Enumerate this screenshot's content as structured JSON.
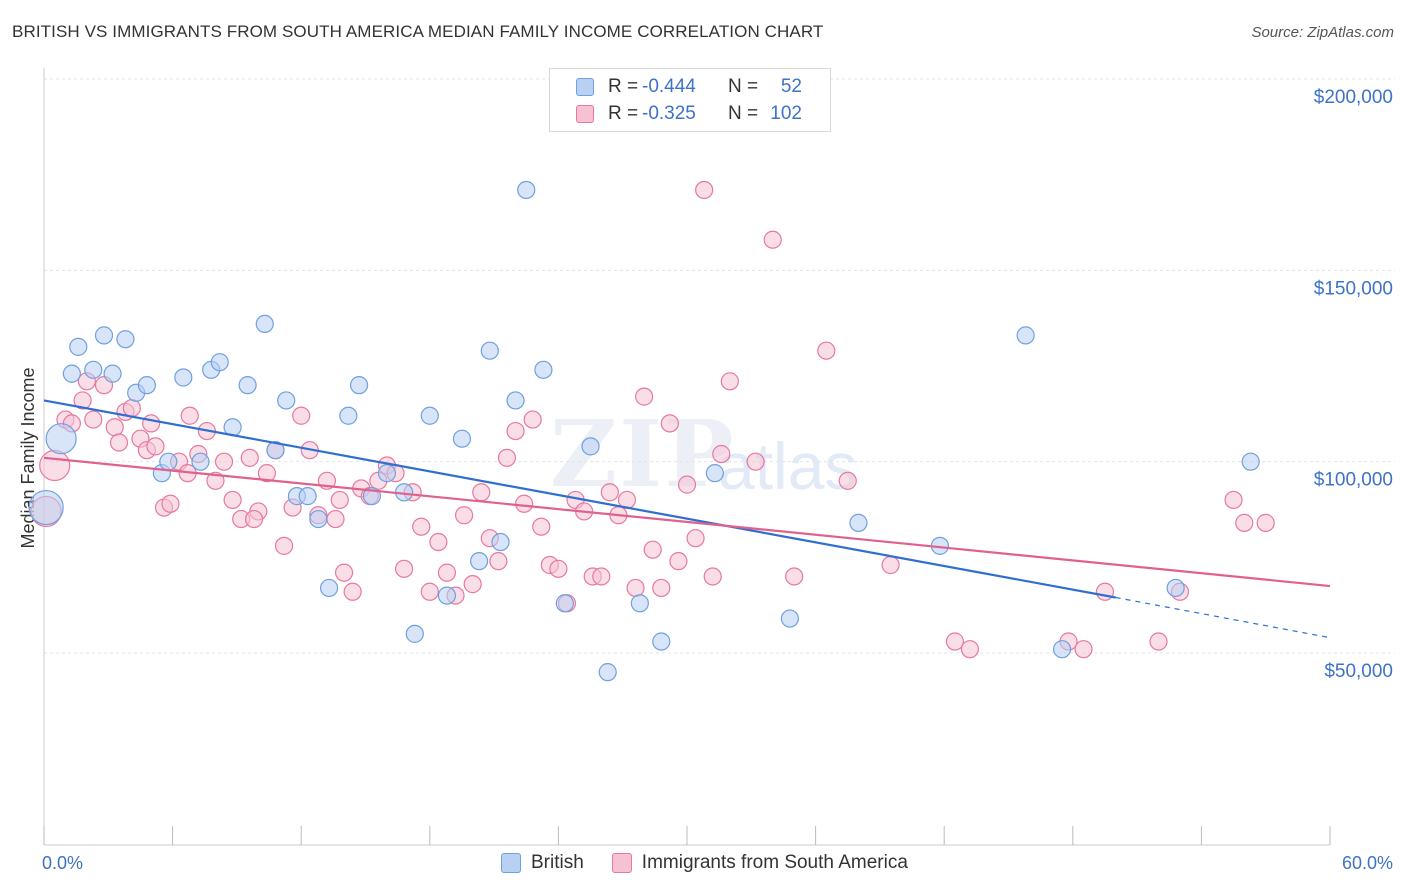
{
  "title": "BRITISH VS IMMIGRANTS FROM SOUTH AMERICA MEDIAN FAMILY INCOME CORRELATION CHART",
  "source": "Source: ZipAtlas.com",
  "watermark": {
    "zip": "ZIP",
    "atlas": "atlas"
  },
  "colors": {
    "british": "#6fa0e0",
    "british_fill": "#b8d0f2",
    "sa": "#e8789e",
    "sa_fill": "#f6c2d3",
    "axis_text": "#3d72c8"
  },
  "legend": {
    "british": {
      "r_label": "R =",
      "r_value": "-0.444",
      "n_label": "N =",
      "n_value": "52"
    },
    "sa": {
      "r_label": "R =",
      "r_value": "-0.325",
      "n_label": "N =",
      "n_value": "102"
    }
  },
  "bottom_legend": {
    "british": "British",
    "sa": "Immigrants from South America"
  },
  "chart_data": {
    "type": "scatter",
    "ylabel": "Median Family Income",
    "xlabel": "",
    "x_tick_labels": {
      "min": "0.0%",
      "max": "60.0%"
    },
    "y_tick_labels": [
      "$50,000",
      "$100,000",
      "$150,000",
      "$200,000"
    ],
    "xlim": [
      0,
      60
    ],
    "ylim": [
      0,
      210000
    ],
    "grid": true,
    "series": [
      {
        "name": "British",
        "trend": {
          "x0": 0,
          "y0": 116000,
          "x1": 50,
          "y1": 64500,
          "dash_to_x": 60,
          "dash_to_y": 54000
        },
        "points": [
          [
            0.1,
            88000,
            3
          ],
          [
            0.8,
            106000,
            2
          ],
          [
            1.3,
            123000,
            1
          ],
          [
            1.6,
            130000,
            1
          ],
          [
            2.3,
            124000,
            1
          ],
          [
            2.8,
            133000,
            1
          ],
          [
            3.2,
            123000,
            1
          ],
          [
            3.8,
            132000,
            1
          ],
          [
            4.3,
            118000,
            1
          ],
          [
            4.8,
            120000,
            1
          ],
          [
            5.5,
            97000,
            1
          ],
          [
            5.8,
            100000,
            1
          ],
          [
            6.5,
            122000,
            1
          ],
          [
            7.3,
            100000,
            1
          ],
          [
            7.8,
            124000,
            1
          ],
          [
            8.2,
            126000,
            1
          ],
          [
            8.8,
            109000,
            1
          ],
          [
            9.5,
            120000,
            1
          ],
          [
            10.3,
            136000,
            1
          ],
          [
            10.8,
            103000,
            1
          ],
          [
            11.3,
            116000,
            1
          ],
          [
            11.8,
            91000,
            1
          ],
          [
            12.3,
            91000,
            1
          ],
          [
            12.8,
            85000,
            1
          ],
          [
            13.3,
            67000,
            1
          ],
          [
            14.2,
            112000,
            1
          ],
          [
            14.7,
            120000,
            1
          ],
          [
            15.3,
            91000,
            1
          ],
          [
            16.0,
            97000,
            1
          ],
          [
            16.8,
            92000,
            1
          ],
          [
            17.3,
            55000,
            1
          ],
          [
            18.0,
            112000,
            1
          ],
          [
            18.8,
            65000,
            1
          ],
          [
            19.5,
            106000,
            1
          ],
          [
            20.3,
            74000,
            1
          ],
          [
            20.8,
            129000,
            1
          ],
          [
            21.3,
            79000,
            1
          ],
          [
            22.0,
            116000,
            1
          ],
          [
            22.5,
            171000,
            1
          ],
          [
            23.3,
            124000,
            1
          ],
          [
            24.3,
            63000,
            1
          ],
          [
            25.5,
            104000,
            1
          ],
          [
            26.3,
            45000,
            1
          ],
          [
            27.8,
            63000,
            1
          ],
          [
            28.8,
            53000,
            1
          ],
          [
            31.3,
            97000,
            1
          ],
          [
            34.8,
            59000,
            1
          ],
          [
            38.0,
            84000,
            1
          ],
          [
            41.8,
            78000,
            1
          ],
          [
            45.8,
            133000,
            1
          ],
          [
            47.5,
            51000,
            1
          ],
          [
            52.8,
            67000,
            1
          ],
          [
            56.3,
            100000,
            1
          ]
        ]
      },
      {
        "name": "Immigrants from South America",
        "trend": {
          "x0": 0,
          "y0": 101000,
          "x1": 60,
          "y1": 67500
        },
        "points": [
          [
            0.1,
            87000,
            2
          ],
          [
            0.5,
            99000,
            2
          ],
          [
            1.0,
            111000,
            1
          ],
          [
            1.3,
            110000,
            1
          ],
          [
            1.8,
            116000,
            1
          ],
          [
            2.3,
            111000,
            1
          ],
          [
            2.8,
            120000,
            1
          ],
          [
            3.3,
            109000,
            1
          ],
          [
            3.8,
            113000,
            1
          ],
          [
            4.1,
            114000,
            1
          ],
          [
            4.5,
            106000,
            1
          ],
          [
            4.8,
            103000,
            1
          ],
          [
            5.2,
            104000,
            1
          ],
          [
            5.6,
            88000,
            1
          ],
          [
            5.9,
            89000,
            1
          ],
          [
            6.3,
            100000,
            1
          ],
          [
            6.7,
            97000,
            1
          ],
          [
            7.2,
            102000,
            1
          ],
          [
            7.6,
            108000,
            1
          ],
          [
            8.0,
            95000,
            1
          ],
          [
            8.4,
            100000,
            1
          ],
          [
            8.8,
            90000,
            1
          ],
          [
            9.2,
            85000,
            1
          ],
          [
            9.6,
            101000,
            1
          ],
          [
            10.0,
            87000,
            1
          ],
          [
            10.4,
            97000,
            1
          ],
          [
            10.8,
            103000,
            1
          ],
          [
            11.2,
            78000,
            1
          ],
          [
            11.6,
            88000,
            1
          ],
          [
            12.0,
            112000,
            1
          ],
          [
            12.4,
            103000,
            1
          ],
          [
            12.8,
            86000,
            1
          ],
          [
            13.2,
            95000,
            1
          ],
          [
            13.6,
            85000,
            1
          ],
          [
            14.0,
            71000,
            1
          ],
          [
            14.4,
            66000,
            1
          ],
          [
            14.8,
            93000,
            1
          ],
          [
            15.2,
            91000,
            1
          ],
          [
            15.6,
            95000,
            1
          ],
          [
            16.0,
            99000,
            1
          ],
          [
            16.4,
            97000,
            1
          ],
          [
            16.8,
            72000,
            1
          ],
          [
            17.2,
            92000,
            1
          ],
          [
            17.6,
            83000,
            1
          ],
          [
            18.0,
            66000,
            1
          ],
          [
            18.4,
            79000,
            1
          ],
          [
            18.8,
            71000,
            1
          ],
          [
            19.2,
            65000,
            1
          ],
          [
            19.6,
            86000,
            1
          ],
          [
            20.0,
            68000,
            1
          ],
          [
            20.4,
            92000,
            1
          ],
          [
            20.8,
            80000,
            1
          ],
          [
            21.2,
            74000,
            1
          ],
          [
            21.6,
            101000,
            1
          ],
          [
            22.0,
            108000,
            1
          ],
          [
            22.4,
            89000,
            1
          ],
          [
            22.8,
            111000,
            1
          ],
          [
            23.2,
            83000,
            1
          ],
          [
            23.6,
            73000,
            1
          ],
          [
            24.0,
            72000,
            1
          ],
          [
            24.4,
            63000,
            1
          ],
          [
            24.8,
            90000,
            1
          ],
          [
            25.2,
            87000,
            1
          ],
          [
            25.6,
            70000,
            1
          ],
          [
            26.0,
            70000,
            1
          ],
          [
            26.4,
            92000,
            1
          ],
          [
            26.8,
            86000,
            1
          ],
          [
            27.2,
            90000,
            1
          ],
          [
            27.6,
            67000,
            1
          ],
          [
            28.0,
            117000,
            1
          ],
          [
            28.4,
            77000,
            1
          ],
          [
            28.8,
            67000,
            1
          ],
          [
            29.2,
            110000,
            1
          ],
          [
            29.6,
            74000,
            1
          ],
          [
            30.0,
            94000,
            1
          ],
          [
            30.4,
            80000,
            1
          ],
          [
            30.8,
            171000,
            1
          ],
          [
            31.2,
            70000,
            1
          ],
          [
            31.6,
            102000,
            1
          ],
          [
            32.0,
            121000,
            1
          ],
          [
            33.2,
            100000,
            1
          ],
          [
            34.0,
            158000,
            1
          ],
          [
            35.0,
            70000,
            1
          ],
          [
            36.5,
            129000,
            1
          ],
          [
            37.5,
            95000,
            1
          ],
          [
            39.5,
            73000,
            1
          ],
          [
            42.5,
            53000,
            1
          ],
          [
            43.2,
            51000,
            1
          ],
          [
            47.8,
            53000,
            1
          ],
          [
            48.5,
            51000,
            1
          ],
          [
            49.5,
            66000,
            1
          ],
          [
            52.0,
            53000,
            1
          ],
          [
            53.0,
            66000,
            1
          ],
          [
            55.5,
            90000,
            1
          ],
          [
            56.0,
            84000,
            1
          ],
          [
            57.0,
            84000,
            1
          ],
          [
            2.0,
            121000,
            1
          ],
          [
            3.5,
            105000,
            1
          ],
          [
            5.0,
            110000,
            1
          ],
          [
            6.8,
            112000,
            1
          ],
          [
            9.8,
            85000,
            1
          ],
          [
            13.8,
            90000,
            1
          ]
        ]
      }
    ]
  }
}
